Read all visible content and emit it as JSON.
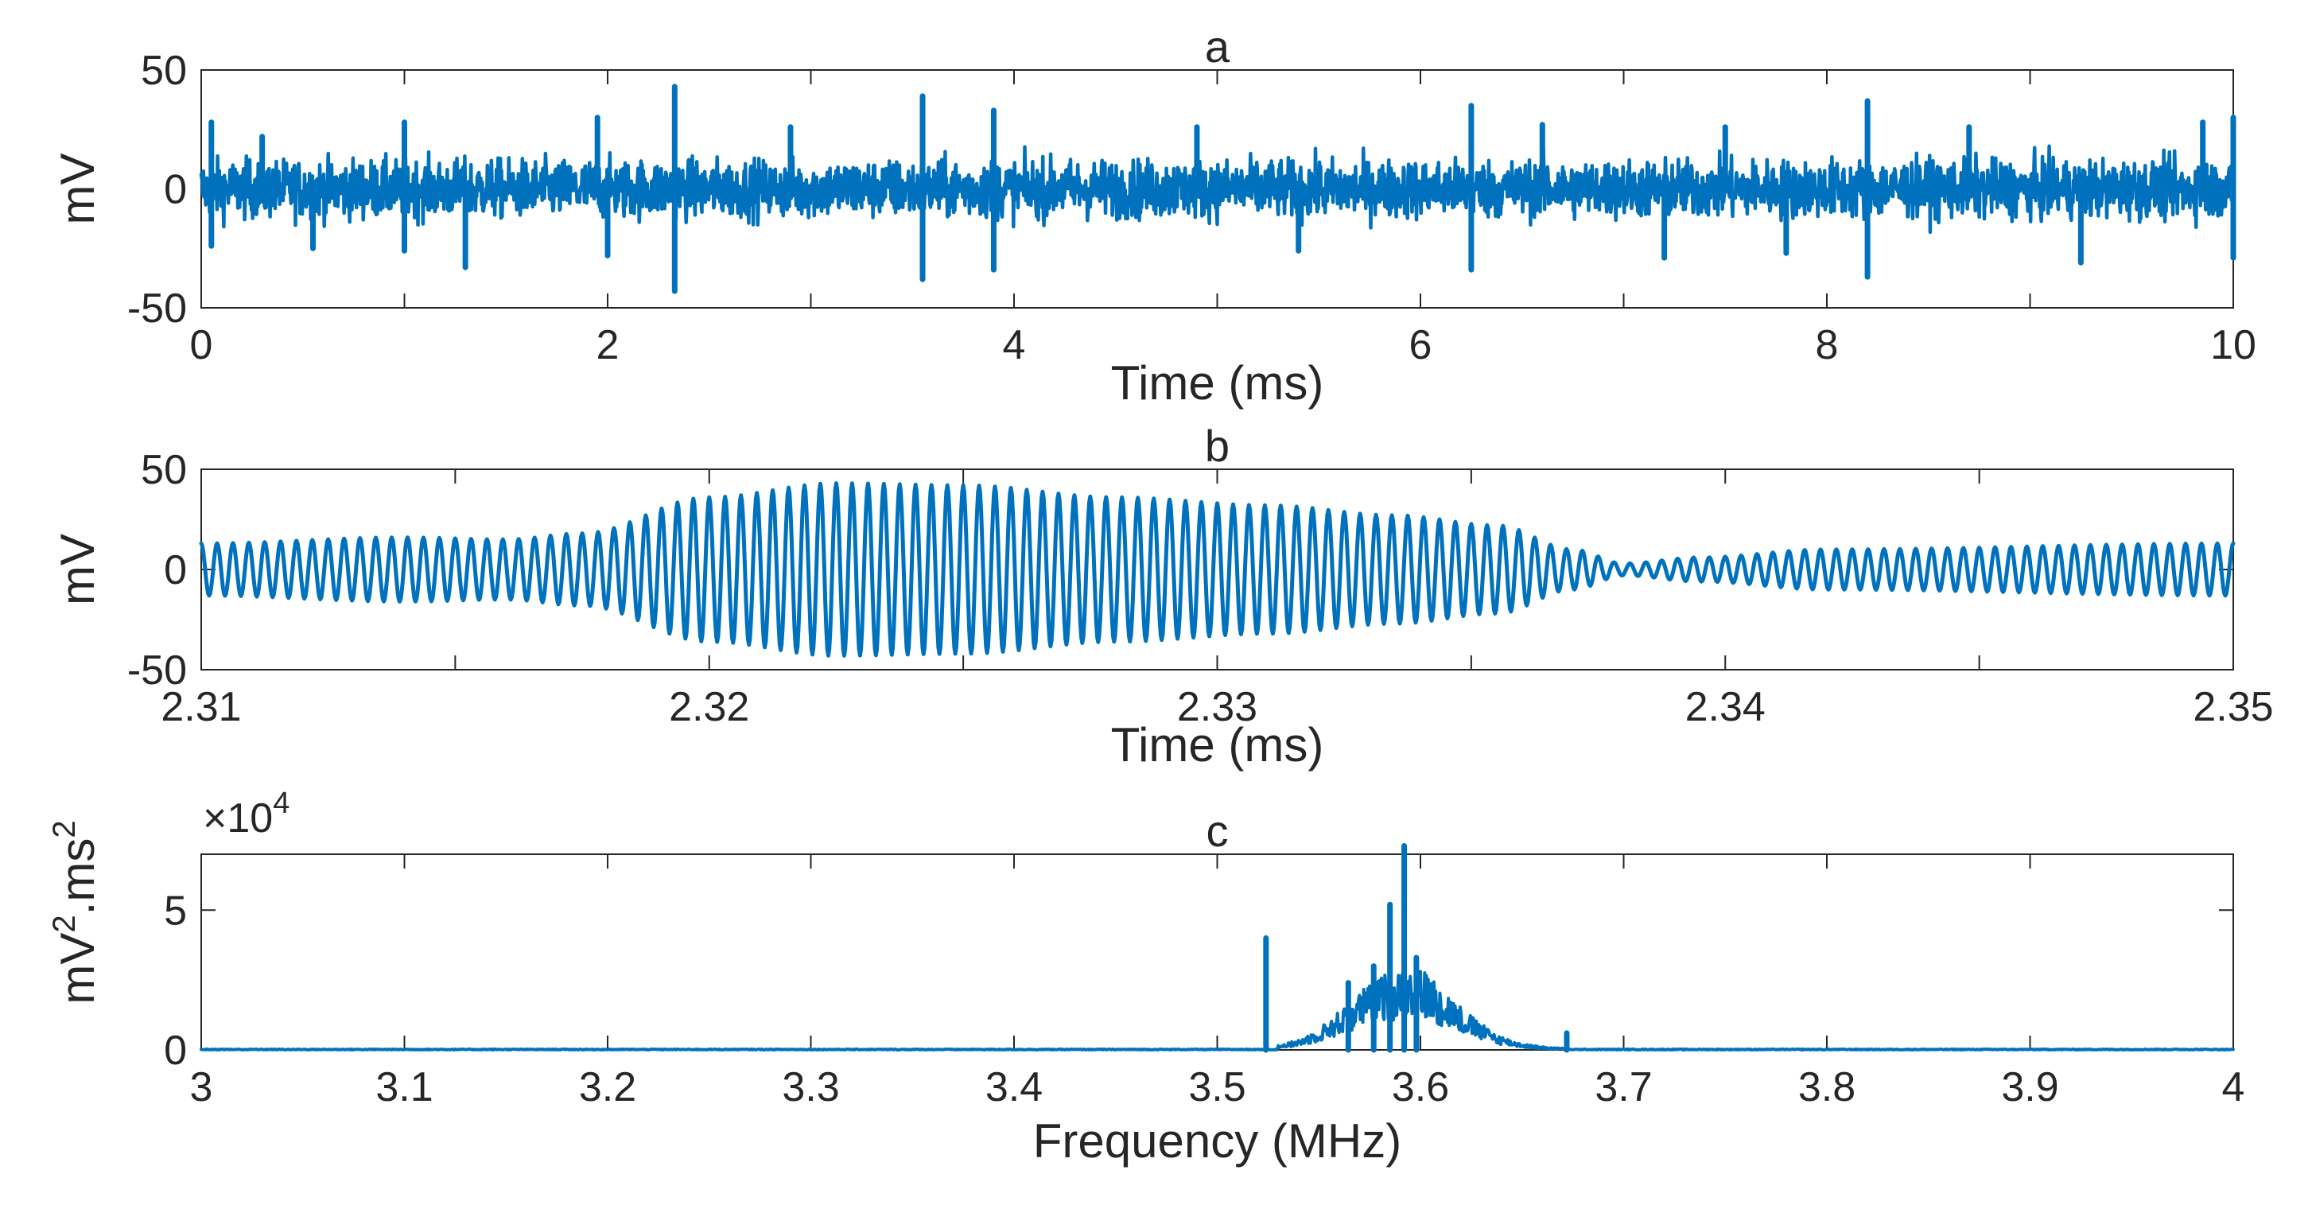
{
  "colors": {
    "series": "#0072BD",
    "axes": "#262626",
    "background": "#FFFFFF"
  },
  "chart_data": [
    {
      "id": "a",
      "type": "line",
      "title": "a",
      "xlabel": "Time (ms)",
      "ylabel": "mV",
      "xlim": [
        0,
        10
      ],
      "ylim": [
        -50,
        50
      ],
      "xticks": [
        0,
        2,
        4,
        6,
        8,
        10
      ],
      "xtick_minor": [
        0,
        1,
        2,
        3,
        4,
        5,
        6,
        7,
        8,
        9,
        10
      ],
      "yticks": [
        -50,
        0,
        50
      ],
      "grid": false,
      "description_of_series": "Broadband noise-like signal, roughly -20 to 20 mV, with spikes",
      "spikes": [
        {
          "x": 0.05,
          "y": 28
        },
        {
          "x": 0.05,
          "y": -24
        },
        {
          "x": 0.3,
          "y": 22
        },
        {
          "x": 0.55,
          "y": -25
        },
        {
          "x": 1.0,
          "y": 28
        },
        {
          "x": 1.0,
          "y": -26
        },
        {
          "x": 1.3,
          "y": -33
        },
        {
          "x": 1.95,
          "y": 30
        },
        {
          "x": 2.0,
          "y": -28
        },
        {
          "x": 2.33,
          "y": 43
        },
        {
          "x": 2.33,
          "y": -43
        },
        {
          "x": 2.9,
          "y": 26
        },
        {
          "x": 3.55,
          "y": 39
        },
        {
          "x": 3.55,
          "y": -38
        },
        {
          "x": 3.9,
          "y": 33
        },
        {
          "x": 3.9,
          "y": -34
        },
        {
          "x": 4.9,
          "y": 26
        },
        {
          "x": 5.4,
          "y": -26
        },
        {
          "x": 6.25,
          "y": 35
        },
        {
          "x": 6.25,
          "y": -34
        },
        {
          "x": 6.6,
          "y": 27
        },
        {
          "x": 7.2,
          "y": -29
        },
        {
          "x": 7.5,
          "y": 26
        },
        {
          "x": 7.8,
          "y": -27
        },
        {
          "x": 8.2,
          "y": 37
        },
        {
          "x": 8.2,
          "y": -37
        },
        {
          "x": 8.7,
          "y": 26
        },
        {
          "x": 9.25,
          "y": -31
        },
        {
          "x": 9.85,
          "y": 28
        },
        {
          "x": 10.0,
          "y": 30
        },
        {
          "x": 10.0,
          "y": -29
        }
      ]
    },
    {
      "id": "b",
      "type": "line",
      "title": "b",
      "xlabel": "Time (ms)",
      "ylabel": "mV",
      "xlim": [
        2.31,
        2.35
      ],
      "ylim": [
        -50,
        50
      ],
      "xticks": [
        2.31,
        2.32,
        2.33,
        2.34,
        2.35
      ],
      "xtick_labels": [
        "2.31",
        "2.32",
        "2.33",
        "2.34",
        "2.35"
      ],
      "xtick_minor": [
        2.31,
        2.315,
        2.32,
        2.325,
        2.33,
        2.335,
        2.34,
        2.345,
        2.35
      ],
      "yticks": [
        -50,
        0,
        50
      ],
      "grid": false,
      "oscillation_cycles": 128,
      "envelope": [
        {
          "t": 2.31,
          "a": 13
        },
        {
          "t": 2.314,
          "a": 16
        },
        {
          "t": 2.316,
          "a": 15
        },
        {
          "t": 2.3175,
          "a": 18
        },
        {
          "t": 2.32,
          "a": 36
        },
        {
          "t": 2.3225,
          "a": 43
        },
        {
          "t": 2.325,
          "a": 42
        },
        {
          "t": 2.328,
          "a": 36
        },
        {
          "t": 2.331,
          "a": 32
        },
        {
          "t": 2.3335,
          "a": 27
        },
        {
          "t": 2.3355,
          "a": 22
        },
        {
          "t": 2.337,
          "a": 10
        },
        {
          "t": 2.338,
          "a": 3
        },
        {
          "t": 2.3395,
          "a": 6
        },
        {
          "t": 2.342,
          "a": 10
        },
        {
          "t": 2.35,
          "a": 13
        }
      ]
    },
    {
      "id": "c",
      "type": "line",
      "title": "c",
      "xlabel": "Frequency (MHz)",
      "ylabel_base": "mV",
      "ylabel_mid": ".ms",
      "ylabel_exp": "2",
      "exponent_label_base": "×10",
      "exponent_label_power": "4",
      "xlim": [
        3,
        4
      ],
      "ylim": [
        0,
        7
      ],
      "xticks": [
        3,
        3.1,
        3.2,
        3.3,
        3.4,
        3.5,
        3.6,
        3.7,
        3.8,
        3.9,
        4
      ],
      "xtick_labels": [
        "3",
        "3.1",
        "3.2",
        "3.3",
        "3.4",
        "3.5",
        "3.6",
        "3.7",
        "3.8",
        "3.9",
        "4"
      ],
      "yticks": [
        0,
        5
      ],
      "ytick_labels": [
        "0",
        "5"
      ],
      "grid": false,
      "peaks": [
        {
          "x": 3.524,
          "y": 4.0
        },
        {
          "x": 3.5645,
          "y": 2.4
        },
        {
          "x": 3.577,
          "y": 3.0
        },
        {
          "x": 3.585,
          "y": 5.2
        },
        {
          "x": 3.592,
          "y": 7.3
        },
        {
          "x": 3.598,
          "y": 3.3
        },
        {
          "x": 3.672,
          "y": 0.6
        }
      ],
      "spectral_mass": {
        "center": 3.59,
        "width": 0.025,
        "height": 3.4,
        "range": [
          3.53,
          3.67
        ]
      }
    }
  ]
}
